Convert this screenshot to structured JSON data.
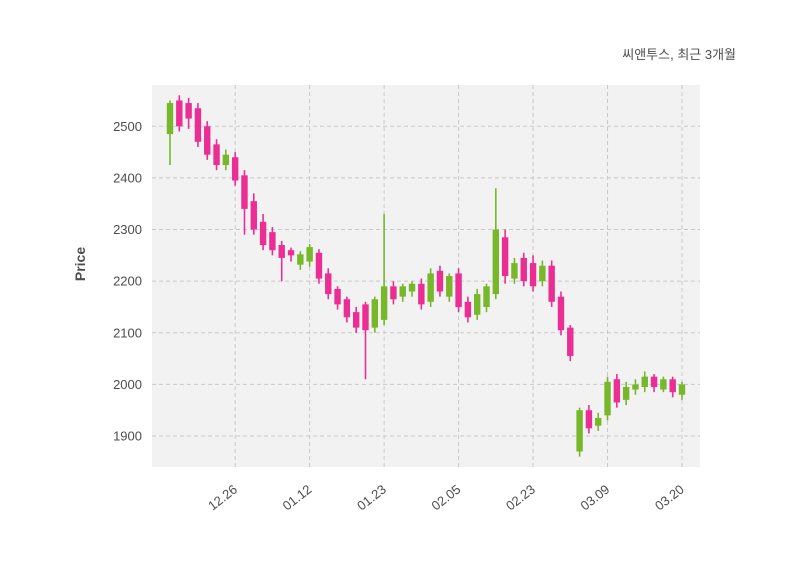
{
  "chart_data": {
    "type": "candlestick",
    "title": "씨앤투스, 최근 3개월",
    "series_name": "씨앤투스",
    "period_label": "최근 3개월",
    "ylabel": "Price",
    "xlabel": "",
    "legend": "none",
    "grid": "dashed",
    "yticks": [
      1900,
      2000,
      2100,
      2200,
      2300,
      2400,
      2500
    ],
    "ylim": [
      1840,
      2580
    ],
    "xticks": {
      "labels": [
        "12.26",
        "01.12",
        "01.23",
        "02.05",
        "02.23",
        "03.09",
        "03.20"
      ],
      "indices": [
        7,
        15,
        23,
        31,
        39,
        47,
        55
      ]
    },
    "colors": {
      "up": "#76b82a",
      "down": "#ea2e94",
      "plot_bg": "#f2f2f2",
      "grid": "#c9c9c9",
      "text": "#4d4d4d"
    },
    "candles": [
      [
        2485,
        2550,
        2425,
        2545
      ],
      [
        2550,
        2560,
        2490,
        2500
      ],
      [
        2545,
        2555,
        2495,
        2515
      ],
      [
        2535,
        2545,
        2460,
        2470
      ],
      [
        2500,
        2510,
        2435,
        2445
      ],
      [
        2465,
        2475,
        2415,
        2425
      ],
      [
        2425,
        2455,
        2415,
        2445
      ],
      [
        2440,
        2450,
        2385,
        2395
      ],
      [
        2405,
        2415,
        2290,
        2340
      ],
      [
        2355,
        2370,
        2290,
        2300
      ],
      [
        2315,
        2330,
        2260,
        2270
      ],
      [
        2295,
        2305,
        2250,
        2260
      ],
      [
        2270,
        2278,
        2200,
        2245
      ],
      [
        2260,
        2265,
        2238,
        2250
      ],
      [
        2232,
        2258,
        2222,
        2252
      ],
      [
        2238,
        2272,
        2228,
        2266
      ],
      [
        2255,
        2262,
        2195,
        2205
      ],
      [
        2215,
        2225,
        2165,
        2175
      ],
      [
        2185,
        2190,
        2145,
        2155
      ],
      [
        2165,
        2170,
        2120,
        2130
      ],
      [
        2140,
        2150,
        2100,
        2110
      ],
      [
        2155,
        2160,
        2010,
        2105
      ],
      [
        2110,
        2170,
        2100,
        2165
      ],
      [
        2125,
        2330,
        2115,
        2190
      ],
      [
        2190,
        2200,
        2155,
        2165
      ],
      [
        2170,
        2195,
        2160,
        2190
      ],
      [
        2180,
        2200,
        2170,
        2195
      ],
      [
        2195,
        2205,
        2145,
        2155
      ],
      [
        2160,
        2225,
        2150,
        2215
      ],
      [
        2220,
        2230,
        2170,
        2180
      ],
      [
        2170,
        2215,
        2160,
        2210
      ],
      [
        2215,
        2225,
        2140,
        2150
      ],
      [
        2160,
        2170,
        2120,
        2130
      ],
      [
        2135,
        2185,
        2125,
        2175
      ],
      [
        2150,
        2195,
        2140,
        2190
      ],
      [
        2175,
        2380,
        2165,
        2300
      ],
      [
        2285,
        2300,
        2195,
        2210
      ],
      [
        2205,
        2245,
        2195,
        2235
      ],
      [
        2245,
        2255,
        2190,
        2200
      ],
      [
        2235,
        2250,
        2180,
        2190
      ],
      [
        2200,
        2240,
        2190,
        2230
      ],
      [
        2230,
        2240,
        2150,
        2160
      ],
      [
        2170,
        2180,
        2095,
        2105
      ],
      [
        2110,
        2115,
        2045,
        2055
      ],
      [
        1870,
        1955,
        1860,
        1950
      ],
      [
        1950,
        1960,
        1905,
        1915
      ],
      [
        1920,
        1945,
        1910,
        1935
      ],
      [
        1940,
        2015,
        1930,
        2005
      ],
      [
        2010,
        2020,
        1955,
        1965
      ],
      [
        1970,
        2005,
        1960,
        1995
      ],
      [
        1990,
        2010,
        1980,
        2000
      ],
      [
        1995,
        2025,
        1985,
        2015
      ],
      [
        2015,
        2020,
        1985,
        1995
      ],
      [
        1990,
        2015,
        1985,
        2010
      ],
      [
        2010,
        2015,
        1975,
        1985
      ],
      [
        1980,
        2005,
        1970,
        2000
      ]
    ]
  }
}
